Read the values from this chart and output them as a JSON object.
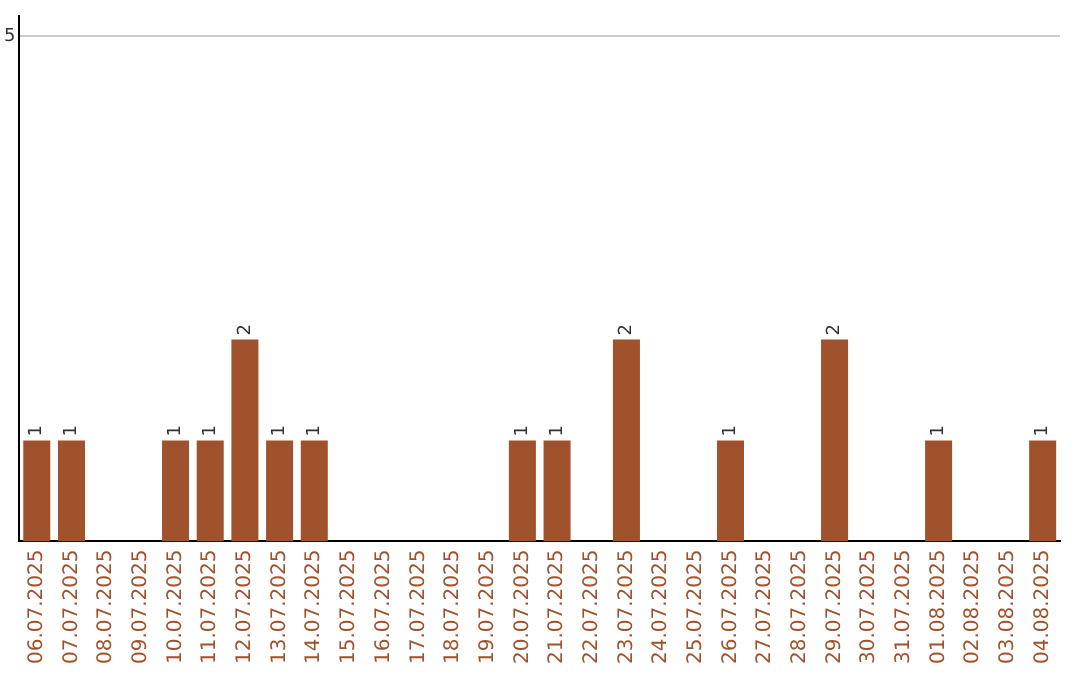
{
  "chart_data": {
    "type": "bar",
    "categories": [
      "06.07.2025",
      "07.07.2025",
      "08.07.2025",
      "09.07.2025",
      "10.07.2025",
      "11.07.2025",
      "12.07.2025",
      "13.07.2025",
      "14.07.2025",
      "15.07.2025",
      "16.07.2025",
      "17.07.2025",
      "18.07.2025",
      "19.07.2025",
      "20.07.2025",
      "21.07.2025",
      "22.07.2025",
      "23.07.2025",
      "24.07.2025",
      "25.07.2025",
      "26.07.2025",
      "27.07.2025",
      "28.07.2025",
      "29.07.2025",
      "30.07.2025",
      "31.07.2025",
      "01.08.2025",
      "02.08.2025",
      "03.08.2025",
      "04.08.2025"
    ],
    "values": [
      1,
      1,
      0,
      0,
      1,
      1,
      2,
      1,
      1,
      0,
      0,
      0,
      0,
      0,
      1,
      1,
      0,
      2,
      0,
      0,
      1,
      0,
      0,
      2,
      0,
      0,
      1,
      0,
      0,
      1
    ],
    "value_labels": [
      "1",
      "1",
      null,
      null,
      "1",
      "1",
      "2",
      "1",
      "1",
      null,
      null,
      null,
      null,
      null,
      "1",
      "1",
      null,
      "2",
      null,
      null,
      "1",
      null,
      null,
      "2",
      null,
      null,
      "1",
      null,
      null,
      "1"
    ],
    "color": "#a0522d",
    "ylim": [
      0,
      5.2
    ],
    "yticks": [
      5
    ],
    "grid": "y",
    "legend": false
  }
}
